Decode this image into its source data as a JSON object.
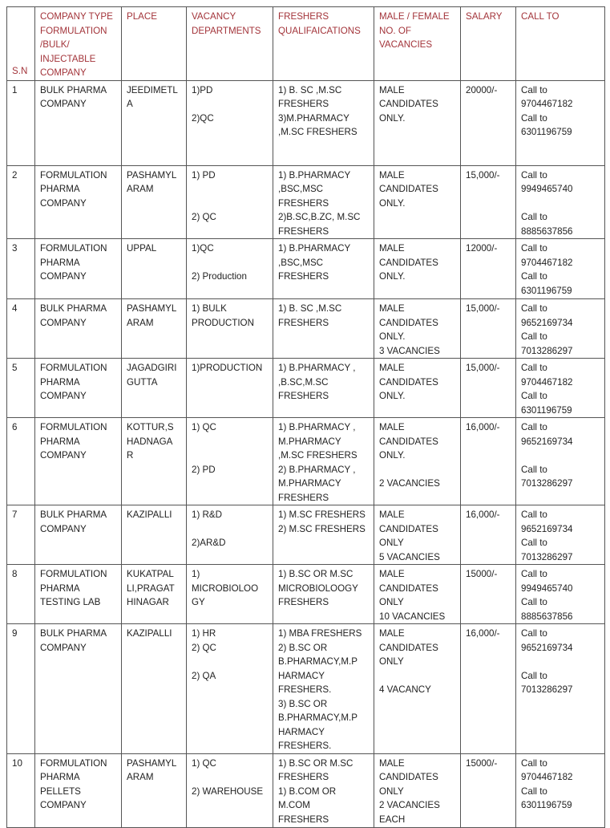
{
  "header": {
    "sn": "S.N",
    "company_type": "COMPANY TYPE\nFORMULATION\n/BULK/\nINJECTABLE\nCOMPANY",
    "place": "PLACE",
    "dept": "VACANCY\nDEPARTMENTS",
    "quals": "FRESHERS\nQUALIFAICATIONS",
    "gender": "MALE / FEMALE\nNO. OF\nVACANCIES",
    "salary": "SALARY",
    "call": "CALL TO"
  },
  "header_color": "#a3343a",
  "rows": [
    {
      "sn": "1",
      "company": "BULK PHARMA\nCOMPANY",
      "place": "JEEDIMETL\nA",
      "dept": "1)PD\n\n2)QC",
      "quals": "1) B. SC ,M.SC\nFRESHERS\n3)M.PHARMACY\n,M.SC FRESHERS",
      "gender": "MALE\nCANDIDATES\nONLY.",
      "salary": "20000/-",
      "call": "Call to\n9704467182\nCall to\n6301196759"
    },
    {
      "sn": "2",
      "company": "FORMULATION\nPHARMA\nCOMPANY",
      "place": "PASHAMYL\nARAM",
      "dept": "1) PD\n\n\n2) QC",
      "quals": "1) B.PHARMACY\n,BSC,MSC\nFRESHERS\n2)B.SC,B.ZC, M.SC\nFRESHERS",
      "gender": "MALE\nCANDIDATES\nONLY.",
      "salary": "15,000/-",
      "call": "Call to\n9949465740\n\nCall to\n8885637856"
    },
    {
      "sn": "3",
      "company": "FORMULATION\nPHARMA\nCOMPANY",
      "place": "UPPAL",
      "dept": "1)QC\n\n 2) Production",
      "quals": "1) B.PHARMACY\n,BSC,MSC\nFRESHERS",
      "gender": "MALE\nCANDIDATES\nONLY.",
      "salary": "12000/-",
      "call": "Call to\n9704467182\nCall to\n6301196759"
    },
    {
      "sn": "4",
      "company": "BULK PHARMA\nCOMPANY",
      "place": "PASHAMYL\nARAM",
      "dept": "1) BULK\nPRODUCTION",
      "quals": "1) B. SC ,M.SC\nFRESHERS",
      "gender": "MALE\nCANDIDATES\nONLY.\n3 VACANCIES",
      "salary": "15,000/-",
      "call": "Call to\n9652169734\nCall to\n7013286297"
    },
    {
      "sn": "5",
      "company": "FORMULATION\nPHARMA\nCOMPANY",
      "place": "JAGADGIRI\nGUTTA",
      "dept": "1)PRODUCTION",
      "quals": "1) B.PHARMACY ,\n,B.SC,M.SC\nFRESHERS",
      "gender": "MALE\nCANDIDATES\nONLY.",
      "salary": "15,000/-",
      "call": "Call to\n9704467182\nCall to\n6301196759"
    },
    {
      "sn": "6",
      "company": "FORMULATION\nPHARMA\nCOMPANY",
      "place": "KOTTUR,S\nHADNAGA\nR",
      "dept": "1) QC\n\n\n2) PD",
      "quals": "1) B.PHARMACY ,\nM.PHARMACY\n,M.SC FRESHERS\n2) B.PHARMACY ,\nM.PHARMACY\nFRESHERS",
      "gender": "MALE\nCANDIDATES\nONLY.\n\n2 VACANCIES",
      "salary": "16,000/-",
      "call": "Call to\n9652169734\n\nCall to\n7013286297"
    },
    {
      "sn": "7",
      "company": "BULK PHARMA\nCOMPANY",
      "place": "KAZIPALLI",
      "dept": "1) R&D\n\n2)AR&D",
      "quals": "1) M.SC FRESHERS\n2) M.SC FRESHERS",
      "gender": "MALE\nCANDIDATES\nONLY\n5 VACANCIES",
      "salary": "16,000/-",
      "call": "Call to\n9652169734\nCall to\n7013286297"
    },
    {
      "sn": "8",
      "company": "FORMULATION\nPHARMA\nTESTING LAB",
      "place": "KUKATPAL\nLI,PRAGAT\nHINAGAR",
      "dept": "1)\nMICROBIOLOO\nGY",
      "quals": "1)  B.SC OR M.SC\nMICROBIOLOOGY\nFRESHERS",
      "gender": " MALE\nCANDIDATES\nONLY\n10 VACANCIES",
      "salary": "15000/-",
      "call": "Call to\n9949465740\nCall to\n8885637856"
    },
    {
      "sn": "9",
      "company": "BULK PHARMA\nCOMPANY",
      "place": "KAZIPALLI",
      "dept": "1) HR\n2) QC\n\n2) QA",
      "quals": "1) MBA FRESHERS\n2)   B.SC OR\nB.PHARMACY,M.P\nHARMACY\nFRESHERS.\n3)  B.SC OR\nB.PHARMACY,M.P\nHARMACY\nFRESHERS.",
      "gender": "MALE\nCANDIDATES\nONLY\n\n4 VACANCY",
      "salary": "16,000/-",
      "call": "Call to\n9652169734\n\nCall to\n7013286297"
    },
    {
      "sn": "10",
      "company": "FORMULATION\nPHARMA\nPELLETS\nCOMPANY",
      "place": "PASHAMYL\nARAM",
      "dept": "1) QC\n\n2) WAREHOUSE",
      "quals": "1)  B.SC OR M.SC\nFRESHERS\n1)  B.COM OR\nM.COM\nFRESHERS",
      "gender": " MALE\nCANDIDATES\nONLY\n2 VACANCIES\nEACH",
      "salary": "15000/-",
      "call": "Call to\n9704467182\nCall to\n6301196759"
    }
  ]
}
